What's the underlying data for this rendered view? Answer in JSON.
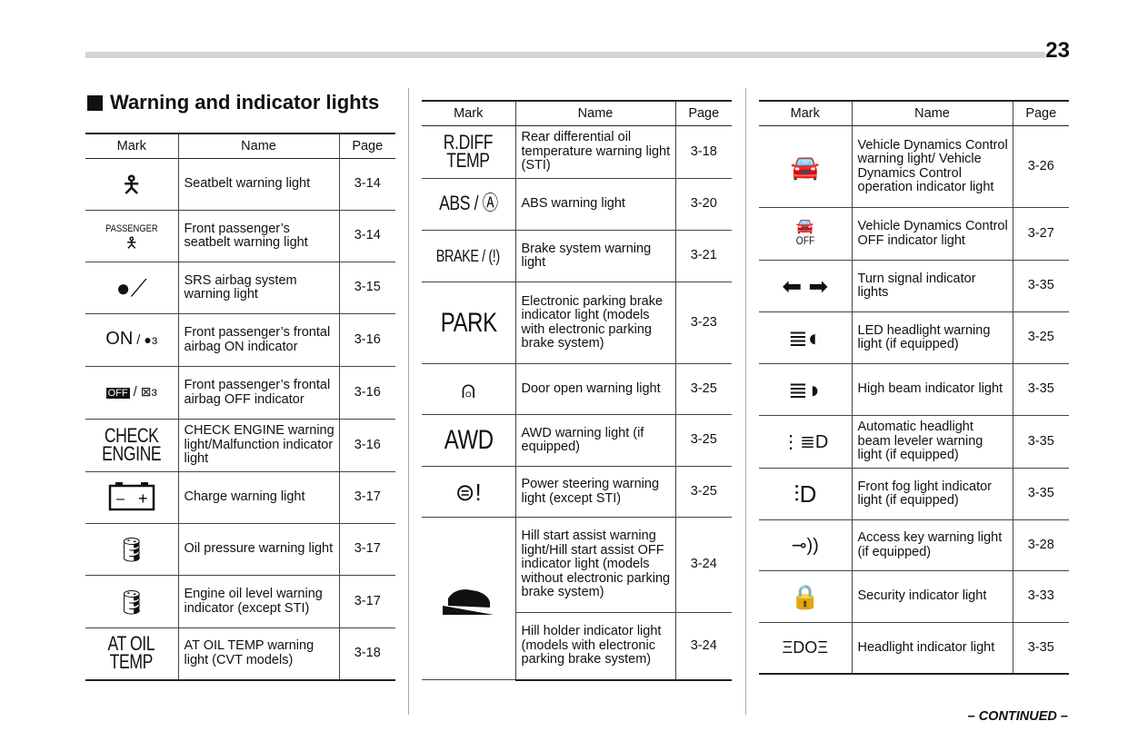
{
  "page_number": "23",
  "title": "Warning and indicator lights",
  "headers": {
    "mark": "Mark",
    "name": "Name",
    "page": "Page"
  },
  "continued": "– CONTINUED –",
  "tables": [
    [
      {
        "icon": "seatbelt-icon",
        "name": "Seatbelt warning light",
        "page": "3-14"
      },
      {
        "icon": "passenger-seatbelt-icon",
        "mark_text": "PASSENGER",
        "name": "Front passenger’s seatbelt warning light",
        "page": "3-14"
      },
      {
        "icon": "airbag-icon",
        "name": "SRS airbag system warning light",
        "page": "3-15"
      },
      {
        "icon": "airbag-on-icon",
        "mark_text": "ON",
        "name": "Front passenger’s frontal airbag ON indicator",
        "page": "3-16"
      },
      {
        "icon": "airbag-off-icon",
        "mark_text": "OFF",
        "name": "Front passenger’s frontal airbag OFF indicator",
        "page": "3-16"
      },
      {
        "icon": "check-engine-icon",
        "mark_text": "CHECK ENGINE",
        "name": "CHECK ENGINE warning light/Malfunction indicator light",
        "page": "3-16"
      },
      {
        "icon": "battery-icon",
        "name": "Charge warning light",
        "page": "3-17"
      },
      {
        "icon": "oil-pressure-icon",
        "name": "Oil pressure warning light",
        "page": "3-17"
      },
      {
        "icon": "oil-level-icon",
        "name": "Engine oil level warning indicator (except STI)",
        "page": "3-17"
      },
      {
        "icon": "at-oil-temp-icon",
        "mark_text": "AT OIL TEMP",
        "name": "AT OIL TEMP warning light (CVT models)",
        "page": "3-18"
      }
    ],
    [
      {
        "icon": "rdiff-temp-icon",
        "mark_text": "R.DIFF TEMP",
        "name": "Rear differential oil temperature warning light (STI)",
        "page": "3-18"
      },
      {
        "icon": "abs-icon",
        "mark_text": "ABS",
        "name": "ABS warning light",
        "page": "3-20"
      },
      {
        "icon": "brake-icon",
        "mark_text": "BRAKE",
        "name": "Brake system warning light",
        "page": "3-21"
      },
      {
        "icon": "park-icon",
        "mark_text": "PARK",
        "name": "Electronic parking brake indicator light (models with electronic parking brake system)",
        "page": "3-23"
      },
      {
        "icon": "door-open-icon",
        "name": "Door open warning light",
        "page": "3-25"
      },
      {
        "icon": "awd-icon",
        "mark_text": "AWD",
        "name": "AWD warning light (if equipped)",
        "page": "3-25"
      },
      {
        "icon": "power-steering-icon",
        "name": "Power steering warning light (except STI)",
        "page": "3-25"
      },
      {
        "icon": "hill-start-icon",
        "name": "Hill start assist warning light/Hill start assist OFF indicator light (models without electronic parking brake system)",
        "page": "3-24"
      },
      {
        "icon": "",
        "name": "Hill holder indicator light (models with electronic parking brake system)",
        "page": "3-24"
      }
    ],
    [
      {
        "icon": "vehicle-dynamics-icon",
        "name": "Vehicle Dynamics Control warning light/ Vehicle Dynamics Control operation indicator light",
        "page": "3-26"
      },
      {
        "icon": "vehicle-dynamics-off-icon",
        "mark_text": "OFF",
        "name": "Vehicle Dynamics Control OFF indicator light",
        "page": "3-27"
      },
      {
        "icon": "turn-signal-icon",
        "name": "Turn signal indicator lights",
        "page": "3-35"
      },
      {
        "icon": "led-headlight-icon",
        "name": "LED headlight warning light (if equipped)",
        "page": "3-25"
      },
      {
        "icon": "high-beam-icon",
        "name": "High beam indicator light",
        "page": "3-35"
      },
      {
        "icon": "headlight-leveler-icon",
        "name": "Automatic headlight beam leveler warning light (if equipped)",
        "page": "3-35"
      },
      {
        "icon": "front-fog-icon",
        "name": "Front fog light indicator light (if equipped)",
        "page": "3-35"
      },
      {
        "icon": "access-key-icon",
        "name": "Access key warning light (if equipped)",
        "page": "3-28"
      },
      {
        "icon": "security-icon",
        "name": "Security indicator light",
        "page": "3-33"
      },
      {
        "icon": "headlight-indicator-icon",
        "name": "Headlight indicator light",
        "page": "3-35"
      }
    ]
  ]
}
